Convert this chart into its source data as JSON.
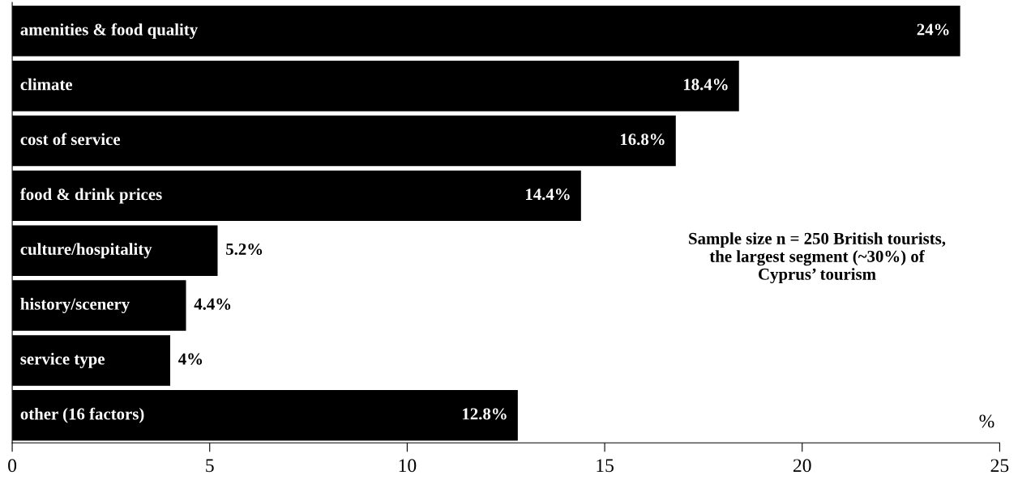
{
  "chart_data": {
    "type": "bar",
    "orientation": "horizontal",
    "xlabel": "%",
    "categories": [
      "amenities & food quality",
      "climate",
      "cost of service",
      "food & drink prices",
      "culture/hospitality",
      "history/scenery",
      "service type",
      "other (16 factors)"
    ],
    "values": [
      24,
      18.4,
      16.8,
      14.4,
      5.2,
      4.4,
      4,
      12.8
    ],
    "value_labels": [
      "24%",
      "18.4%",
      "16.8%",
      "14.4%",
      "5.2%",
      "4.4%",
      "4%",
      "12.8%"
    ],
    "color": "#000000",
    "xlim": [
      0,
      25
    ],
    "xticks": [
      0,
      5,
      10,
      15,
      20,
      25
    ],
    "grid": false,
    "legend": false,
    "annotations": [
      "Sample size n = 250 British tourists,\nthe largest segment (~30%) of\nCyprus’ tourism"
    ]
  }
}
